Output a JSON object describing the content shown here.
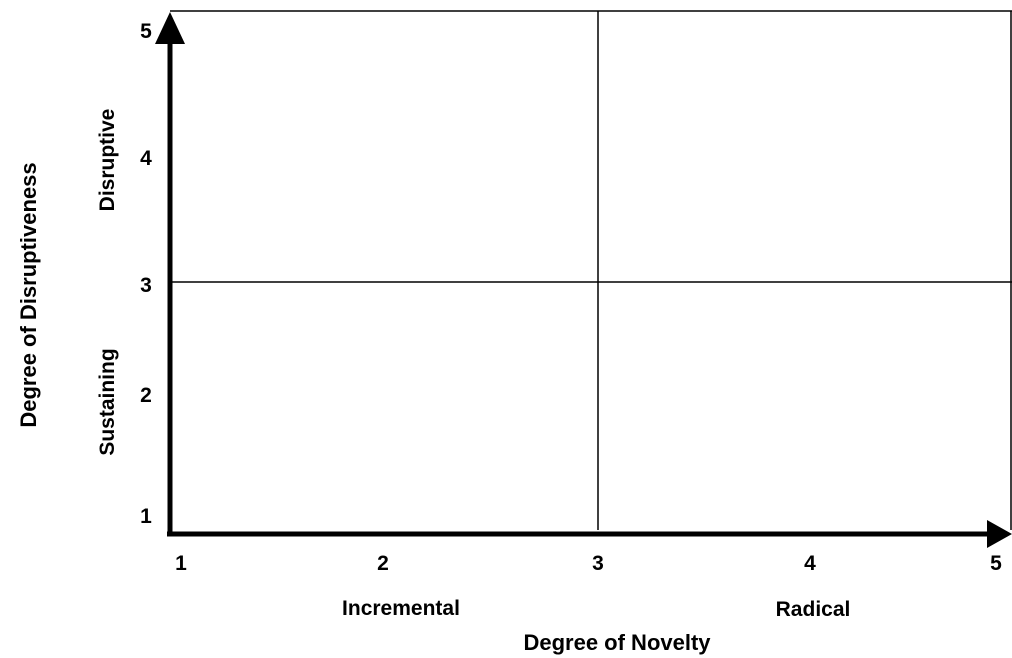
{
  "chart_data": {
    "type": "quadrant",
    "x_axis": {
      "title": "Degree of Novelty",
      "ticks": [
        "1",
        "2",
        "3",
        "4",
        "5"
      ],
      "range": [
        1,
        5
      ],
      "divider": 3,
      "region_labels": [
        "Incremental",
        "Radical"
      ]
    },
    "y_axis": {
      "title": "Degree of Disruptiveness",
      "ticks": [
        "1",
        "2",
        "3",
        "4",
        "5"
      ],
      "range": [
        1,
        5
      ],
      "divider": 3,
      "region_labels": [
        "Sustaining",
        "Disruptive"
      ]
    },
    "colors": {
      "axis": "#000000",
      "background": "#ffffff"
    }
  }
}
